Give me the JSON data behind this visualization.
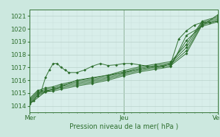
{
  "bg_color": "#cce8df",
  "plot_bg_color": "#d8eeea",
  "grid_color": "#b8d8d0",
  "line_color": "#2d6e2d",
  "marker_color": "#2d6e2d",
  "ylabel_ticks": [
    1014,
    1015,
    1016,
    1017,
    1018,
    1019,
    1020,
    1021
  ],
  "xlim": [
    0,
    48
  ],
  "ylim": [
    1013.5,
    1021.5
  ],
  "xlabel": "Pression niveau de la mer( hPa )",
  "xtick_positions": [
    0,
    24,
    48
  ],
  "xtick_labels": [
    "Mer",
    "Jeu",
    "Ven"
  ],
  "series": [
    {
      "x": [
        0,
        1,
        2,
        3,
        4,
        5,
        6,
        7,
        8,
        9,
        10,
        12,
        14,
        16,
        18,
        20,
        22,
        24,
        26,
        28,
        30,
        32,
        34,
        36,
        38,
        40,
        42,
        44,
        46,
        48
      ],
      "y": [
        1014.2,
        1014.4,
        1014.8,
        1015.2,
        1016.2,
        1016.8,
        1017.3,
        1017.3,
        1017.0,
        1016.8,
        1016.6,
        1016.6,
        1016.8,
        1017.1,
        1017.3,
        1017.15,
        1017.2,
        1017.3,
        1017.3,
        1017.2,
        1017.1,
        1017.05,
        1017.1,
        1017.3,
        1019.2,
        1019.85,
        1020.3,
        1020.5,
        1020.5,
        1020.6
      ]
    },
    {
      "x": [
        0,
        2,
        4,
        6,
        8,
        12,
        16,
        20,
        24,
        28,
        32,
        36,
        40,
        44,
        48
      ],
      "y": [
        1014.2,
        1014.8,
        1015.1,
        1015.15,
        1015.3,
        1015.55,
        1015.75,
        1016.0,
        1016.35,
        1016.65,
        1016.85,
        1017.05,
        1019.5,
        1020.2,
        1020.55
      ]
    },
    {
      "x": [
        0,
        2,
        4,
        6,
        8,
        12,
        16,
        20,
        24,
        28,
        32,
        36,
        40,
        44,
        48
      ],
      "y": [
        1014.3,
        1014.9,
        1015.15,
        1015.25,
        1015.4,
        1015.65,
        1015.85,
        1016.1,
        1016.45,
        1016.75,
        1016.95,
        1017.15,
        1018.1,
        1020.3,
        1020.65
      ]
    },
    {
      "x": [
        0,
        2,
        4,
        6,
        8,
        12,
        16,
        20,
        24,
        28,
        32,
        36,
        40,
        44,
        48
      ],
      "y": [
        1014.4,
        1015.0,
        1015.2,
        1015.3,
        1015.5,
        1015.75,
        1015.95,
        1016.2,
        1016.55,
        1016.85,
        1017.05,
        1017.25,
        1018.3,
        1020.4,
        1020.75
      ]
    },
    {
      "x": [
        0,
        2,
        4,
        6,
        8,
        12,
        16,
        20,
        24,
        28,
        32,
        36,
        40,
        44,
        48
      ],
      "y": [
        1014.5,
        1015.1,
        1015.3,
        1015.4,
        1015.6,
        1015.85,
        1016.05,
        1016.3,
        1016.65,
        1016.95,
        1017.15,
        1017.35,
        1018.55,
        1020.5,
        1020.85
      ]
    },
    {
      "x": [
        0,
        2,
        4,
        6,
        8,
        12,
        16,
        20,
        24,
        28,
        32,
        36,
        40,
        44,
        48
      ],
      "y": [
        1014.6,
        1015.2,
        1015.4,
        1015.5,
        1015.7,
        1015.95,
        1016.15,
        1016.4,
        1016.75,
        1017.05,
        1017.25,
        1017.45,
        1018.8,
        1020.6,
        1020.95
      ]
    },
    {
      "x": [
        0,
        4,
        8,
        12,
        16,
        20,
        24,
        28,
        32,
        36,
        40,
        44,
        48
      ],
      "y": [
        1014.15,
        1015.1,
        1015.5,
        1016.0,
        1016.2,
        1016.4,
        1016.6,
        1016.85,
        1017.05,
        1017.25,
        1019.1,
        1020.25,
        1021.1
      ]
    }
  ]
}
